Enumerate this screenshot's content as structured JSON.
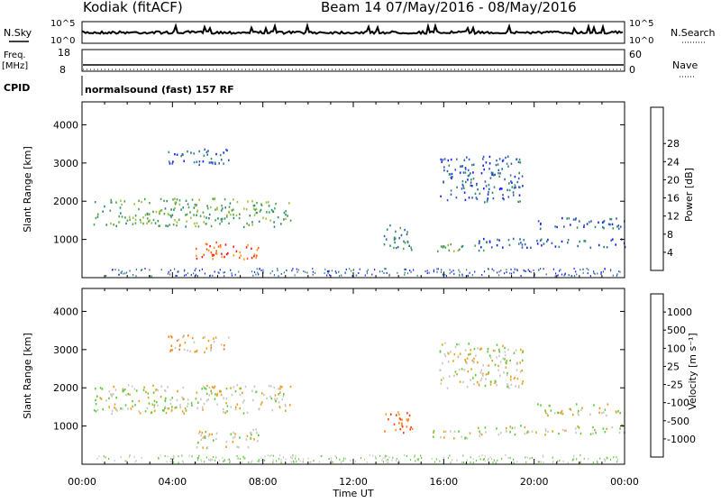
{
  "header": {
    "station": "Kodiak (fitACF)",
    "beam_info": "Beam 14 07/May/2016 - 08/May/2016"
  },
  "top_panels": {
    "nsky": {
      "label": "N.Sky",
      "tick_top": "10^5",
      "tick_bottom": "10^0"
    },
    "nsearch": {
      "label": "N.Search",
      "tick_top": "10^5",
      "tick_bottom": "10^0"
    },
    "freq": {
      "label_1": "Freq.",
      "label_2": "[MHz]",
      "tick_top": "18",
      "tick_bottom": "8"
    },
    "nave": {
      "label": "Nave",
      "tick_top": "60",
      "tick_bottom": "0"
    },
    "cpid": {
      "label": "CPID",
      "value": "normalsound (fast) 157 RF"
    }
  },
  "colors": {
    "power_scale": [
      "#1a1aff",
      "#2e5fb3",
      "#2e8a6e",
      "#4fa14f",
      "#9ec03a",
      "#e6cc1a",
      "#ff9c1a",
      "#ff5a1a",
      "#ff1a1a"
    ],
    "velocity_scale": [
      "#1a3ab3",
      "#2a68b3",
      "#1f8a40",
      "#5ec93a",
      "#c8c8c0",
      "#e6a020",
      "#ff7a1a",
      "#ff3a1a",
      "#e61a1a"
    ]
  },
  "chart_data": [
    {
      "type": "heatmap",
      "title": "Power",
      "xlabel": "Time UT",
      "ylabel": "Slant Range [km]",
      "xlim": [
        "00:00",
        "24:00"
      ],
      "ylim": [
        0,
        4600
      ],
      "x_ticks": [
        "00:00",
        "04:00",
        "08:00",
        "12:00",
        "16:00",
        "20:00",
        "00:00"
      ],
      "y_ticks": [
        "1000",
        "2000",
        "3000",
        "4000"
      ],
      "colorbar_label": "Power [dB]",
      "colorbar_ticks": [
        "4",
        "8",
        "12",
        "16",
        "20",
        "24",
        "28"
      ],
      "regions": [
        {
          "t0": 0.5,
          "t1": 9.2,
          "r0": 1350,
          "r1": 2100,
          "level": 3
        },
        {
          "t0": 3.8,
          "t1": 6.5,
          "r0": 2950,
          "r1": 3400,
          "level": 1
        },
        {
          "t0": 5.0,
          "t1": 7.8,
          "r0": 450,
          "r1": 950,
          "level": 7
        },
        {
          "t0": 13.3,
          "t1": 14.6,
          "r0": 750,
          "r1": 1400,
          "level": 2
        },
        {
          "t0": 15.5,
          "t1": 18.0,
          "r0": 700,
          "r1": 900,
          "level": 3
        },
        {
          "t0": 15.8,
          "t1": 19.5,
          "r0": 2000,
          "r1": 3200,
          "level": 1
        },
        {
          "t0": 17.5,
          "t1": 24.0,
          "r0": 800,
          "r1": 1050,
          "level": 1
        },
        {
          "t0": 20.0,
          "t1": 24.0,
          "r0": 1300,
          "r1": 1600,
          "level": 1
        }
      ]
    },
    {
      "type": "heatmap",
      "title": "Velocity",
      "xlabel": "Time UT",
      "ylabel": "Slant Range [km]",
      "xlim": [
        "00:00",
        "24:00"
      ],
      "ylim": [
        0,
        4600
      ],
      "x_ticks": [
        "00:00",
        "04:00",
        "08:00",
        "12:00",
        "16:00",
        "20:00",
        "00:00"
      ],
      "y_ticks": [
        "1000",
        "2000",
        "3000",
        "4000"
      ],
      "colorbar_label": "Velocity [m s⁻¹]",
      "colorbar_ticks": [
        "1000",
        "500",
        "100",
        "25",
        "-25",
        "-100",
        "-500",
        "-1000"
      ],
      "regions": [
        {
          "t0": 0.5,
          "t1": 9.2,
          "r0": 1350,
          "r1": 2100,
          "level": 4
        },
        {
          "t0": 3.8,
          "t1": 6.5,
          "r0": 2950,
          "r1": 3400,
          "level": 5
        },
        {
          "t0": 5.0,
          "t1": 7.8,
          "r0": 450,
          "r1": 950,
          "level": 4
        },
        {
          "t0": 13.3,
          "t1": 14.6,
          "r0": 750,
          "r1": 1400,
          "level": 6
        },
        {
          "t0": 15.5,
          "t1": 18.0,
          "r0": 700,
          "r1": 900,
          "level": 4
        },
        {
          "t0": 15.8,
          "t1": 19.5,
          "r0": 2000,
          "r1": 3200,
          "level": 4
        },
        {
          "t0": 17.5,
          "t1": 24.0,
          "r0": 800,
          "r1": 1050,
          "level": 4
        },
        {
          "t0": 20.0,
          "t1": 24.0,
          "r0": 1300,
          "r1": 1600,
          "level": 4
        }
      ]
    }
  ]
}
